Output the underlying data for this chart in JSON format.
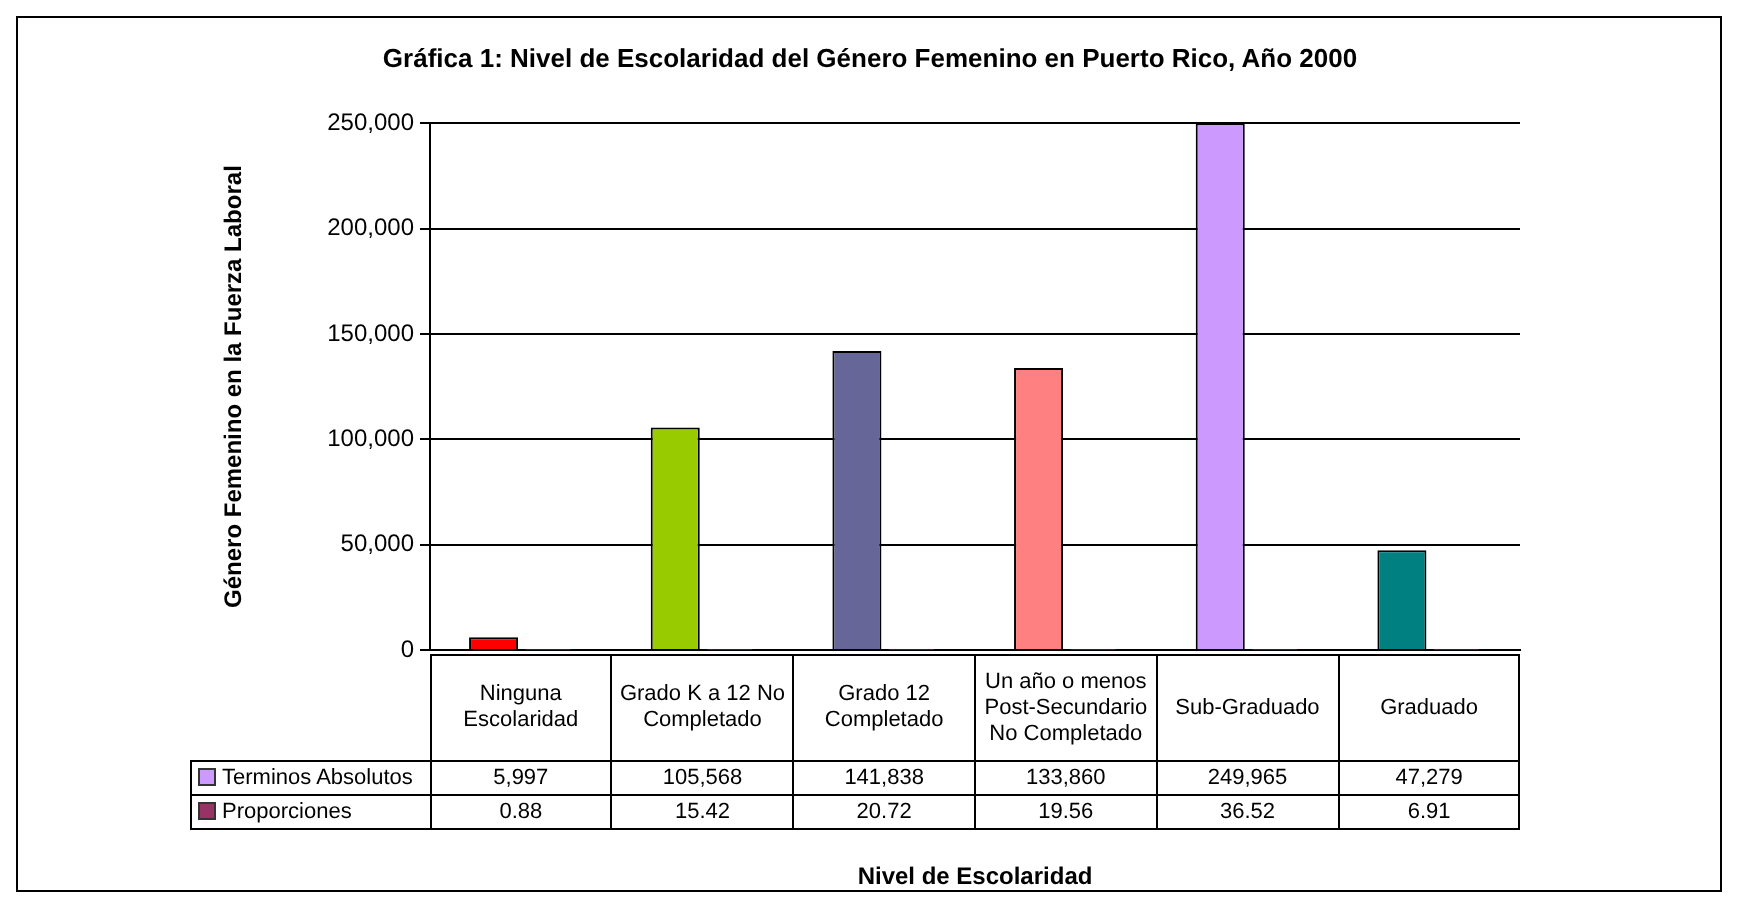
{
  "chart_data": {
    "type": "bar",
    "title": "Gráfica 1: Nivel de Escolaridad del Género Femenino en Puerto Rico, Año 2000",
    "xlabel": "Nivel de Escolaridad",
    "ylabel": "Género Femenino en la Fuerza Laboral",
    "categories": [
      "Ninguna Escolaridad",
      "Grado K a 12 No Completado",
      "Grado 12 Completado",
      "Un año o menos Post-Secundario No Completado",
      "Sub-Graduado",
      "Graduado"
    ],
    "series": [
      {
        "name": "Terminos Absolutos",
        "color": "#cc99ff",
        "colors": [
          "#ff0000",
          "#99cc00",
          "#666699",
          "#ff8080",
          "#cc99ff",
          "#008080"
        ],
        "values": [
          5997,
          105568,
          141838,
          133860,
          249965,
          47279
        ],
        "value_labels": [
          "5,997",
          "105,568",
          "141,838",
          "133,860",
          "249,965",
          "47,279"
        ]
      },
      {
        "name": "Proporciones",
        "color": "#993366",
        "values": [
          0.88,
          15.42,
          20.72,
          19.56,
          36.52,
          6.91
        ],
        "value_labels": [
          "0.88",
          "15.42",
          "20.72",
          "19.56",
          "36.52",
          "6.91"
        ]
      }
    ],
    "ylim": [
      0,
      250000
    ],
    "yticks": [
      {
        "value": 0,
        "label": "0"
      },
      {
        "value": 50000,
        "label": "50,000"
      },
      {
        "value": 100000,
        "label": "100,000"
      },
      {
        "value": 150000,
        "label": "150,000"
      },
      {
        "value": 200000,
        "label": "200,000"
      },
      {
        "value": 250000,
        "label": "250,000"
      }
    ],
    "grid": "y",
    "legend": "bottom left",
    "data_labels": true
  }
}
